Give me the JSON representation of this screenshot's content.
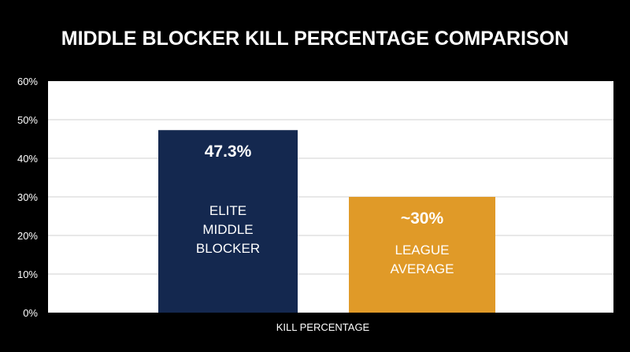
{
  "chart_data": {
    "type": "bar",
    "title": "MIDDLE BLOCKER KILL PERCENTAGE COMPARISON",
    "xlabel": "KILL PERCENTAGE",
    "ylabel": "",
    "ylim": [
      0,
      60
    ],
    "yticks": [
      "0%",
      "10%",
      "20%",
      "30%",
      "40%",
      "50%",
      "60%"
    ],
    "ytick_values": [
      0,
      10,
      20,
      30,
      40,
      50,
      60
    ],
    "grid": true,
    "categories": [
      "ELITE MIDDLE BLOCKER",
      "LEAGUE AVERAGE"
    ],
    "category_lines": [
      [
        "ELITE",
        "MIDDLE",
        "BLOCKER"
      ],
      [
        "LEAGUE",
        "AVERAGE"
      ]
    ],
    "values": [
      47.3,
      30
    ],
    "value_labels": [
      "47.3%",
      "~30%"
    ],
    "colors": [
      "#14284f",
      "#e09a28"
    ],
    "plot_background": "#ffffff",
    "page_background": "#000000"
  }
}
